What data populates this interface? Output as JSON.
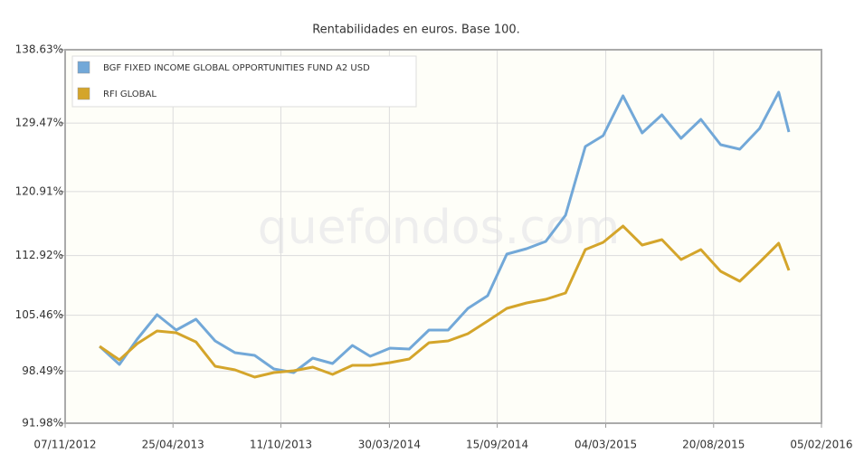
{
  "chart_data": {
    "type": "line",
    "title": "Rentabilidades en euros. Base 100.",
    "watermark": "quefondos.com",
    "x": [
      "2012-12-31",
      "2013-01-31",
      "2013-02-28",
      "2013-03-31",
      "2013-04-30",
      "2013-05-31",
      "2013-06-30",
      "2013-07-31",
      "2013-08-31",
      "2013-09-30",
      "2013-10-31",
      "2013-11-30",
      "2013-12-31",
      "2014-01-31",
      "2014-02-28",
      "2014-03-31",
      "2014-04-30",
      "2014-05-31",
      "2014-06-30",
      "2014-07-31",
      "2014-08-31",
      "2014-09-30",
      "2014-10-31",
      "2014-11-30",
      "2014-12-31",
      "2015-01-31",
      "2015-02-28",
      "2015-03-31",
      "2015-04-30",
      "2015-05-31",
      "2015-06-30",
      "2015-07-31",
      "2015-08-31",
      "2015-09-30",
      "2015-10-31",
      "2015-11-30",
      "2015-12-16"
    ],
    "series": [
      {
        "name": "BGF FIXED INCOME GLOBAL OPPORTUNITIES FUND A2 USD",
        "color": "#72a8d8",
        "values": [
          101.58,
          99.32,
          102.48,
          105.53,
          103.61,
          104.97,
          102.26,
          100.79,
          100.45,
          98.76,
          98.31,
          100.11,
          99.43,
          101.69,
          100.34,
          101.36,
          101.24,
          103.61,
          103.61,
          106.32,
          107.91,
          113.1,
          113.78,
          114.68,
          117.96,
          126.54,
          127.9,
          132.87,
          128.24,
          130.5,
          127.56,
          129.93,
          126.77,
          126.2,
          128.8,
          133.32,
          128.35
        ]
      },
      {
        "name": "RFI GLOBAL",
        "color": "#d4a52b",
        "values": [
          101.58,
          99.89,
          101.92,
          103.5,
          103.27,
          102.14,
          99.1,
          98.64,
          97.74,
          98.31,
          98.53,
          98.98,
          98.08,
          99.21,
          99.21,
          99.55,
          100.0,
          102.03,
          102.26,
          103.16,
          104.74,
          106.32,
          107.0,
          107.45,
          108.24,
          113.67,
          114.57,
          116.6,
          114.23,
          114.91,
          112.42,
          113.67,
          110.96,
          109.71,
          112.09,
          114.46,
          111.07
        ]
      }
    ],
    "xlim": [
      "2012-11-07",
      "2016-02-05"
    ],
    "xticks": [
      {
        "value": "2012-11-07",
        "label": "07/11/2012"
      },
      {
        "value": "2013-04-25",
        "label": "25/04/2013"
      },
      {
        "value": "2013-10-11",
        "label": "11/10/2013"
      },
      {
        "value": "2014-03-30",
        "label": "30/03/2014"
      },
      {
        "value": "2014-09-15",
        "label": "15/09/2014"
      },
      {
        "value": "2015-03-04",
        "label": "04/03/2015"
      },
      {
        "value": "2015-08-20",
        "label": "20/08/2015"
      },
      {
        "value": "2016-02-05",
        "label": "05/02/2016"
      }
    ],
    "ylim": [
      91.98,
      138.63
    ],
    "yticks": [
      {
        "value": 91.98,
        "label": "91.98%"
      },
      {
        "value": 98.49,
        "label": "98.49%"
      },
      {
        "value": 105.46,
        "label": "105.46%"
      },
      {
        "value": 112.92,
        "label": "112.92%"
      },
      {
        "value": 120.91,
        "label": "120.91%"
      },
      {
        "value": 129.47,
        "label": "129.47%"
      },
      {
        "value": 138.63,
        "label": "138.63%"
      }
    ],
    "grid": true,
    "legend": "upper-left"
  }
}
